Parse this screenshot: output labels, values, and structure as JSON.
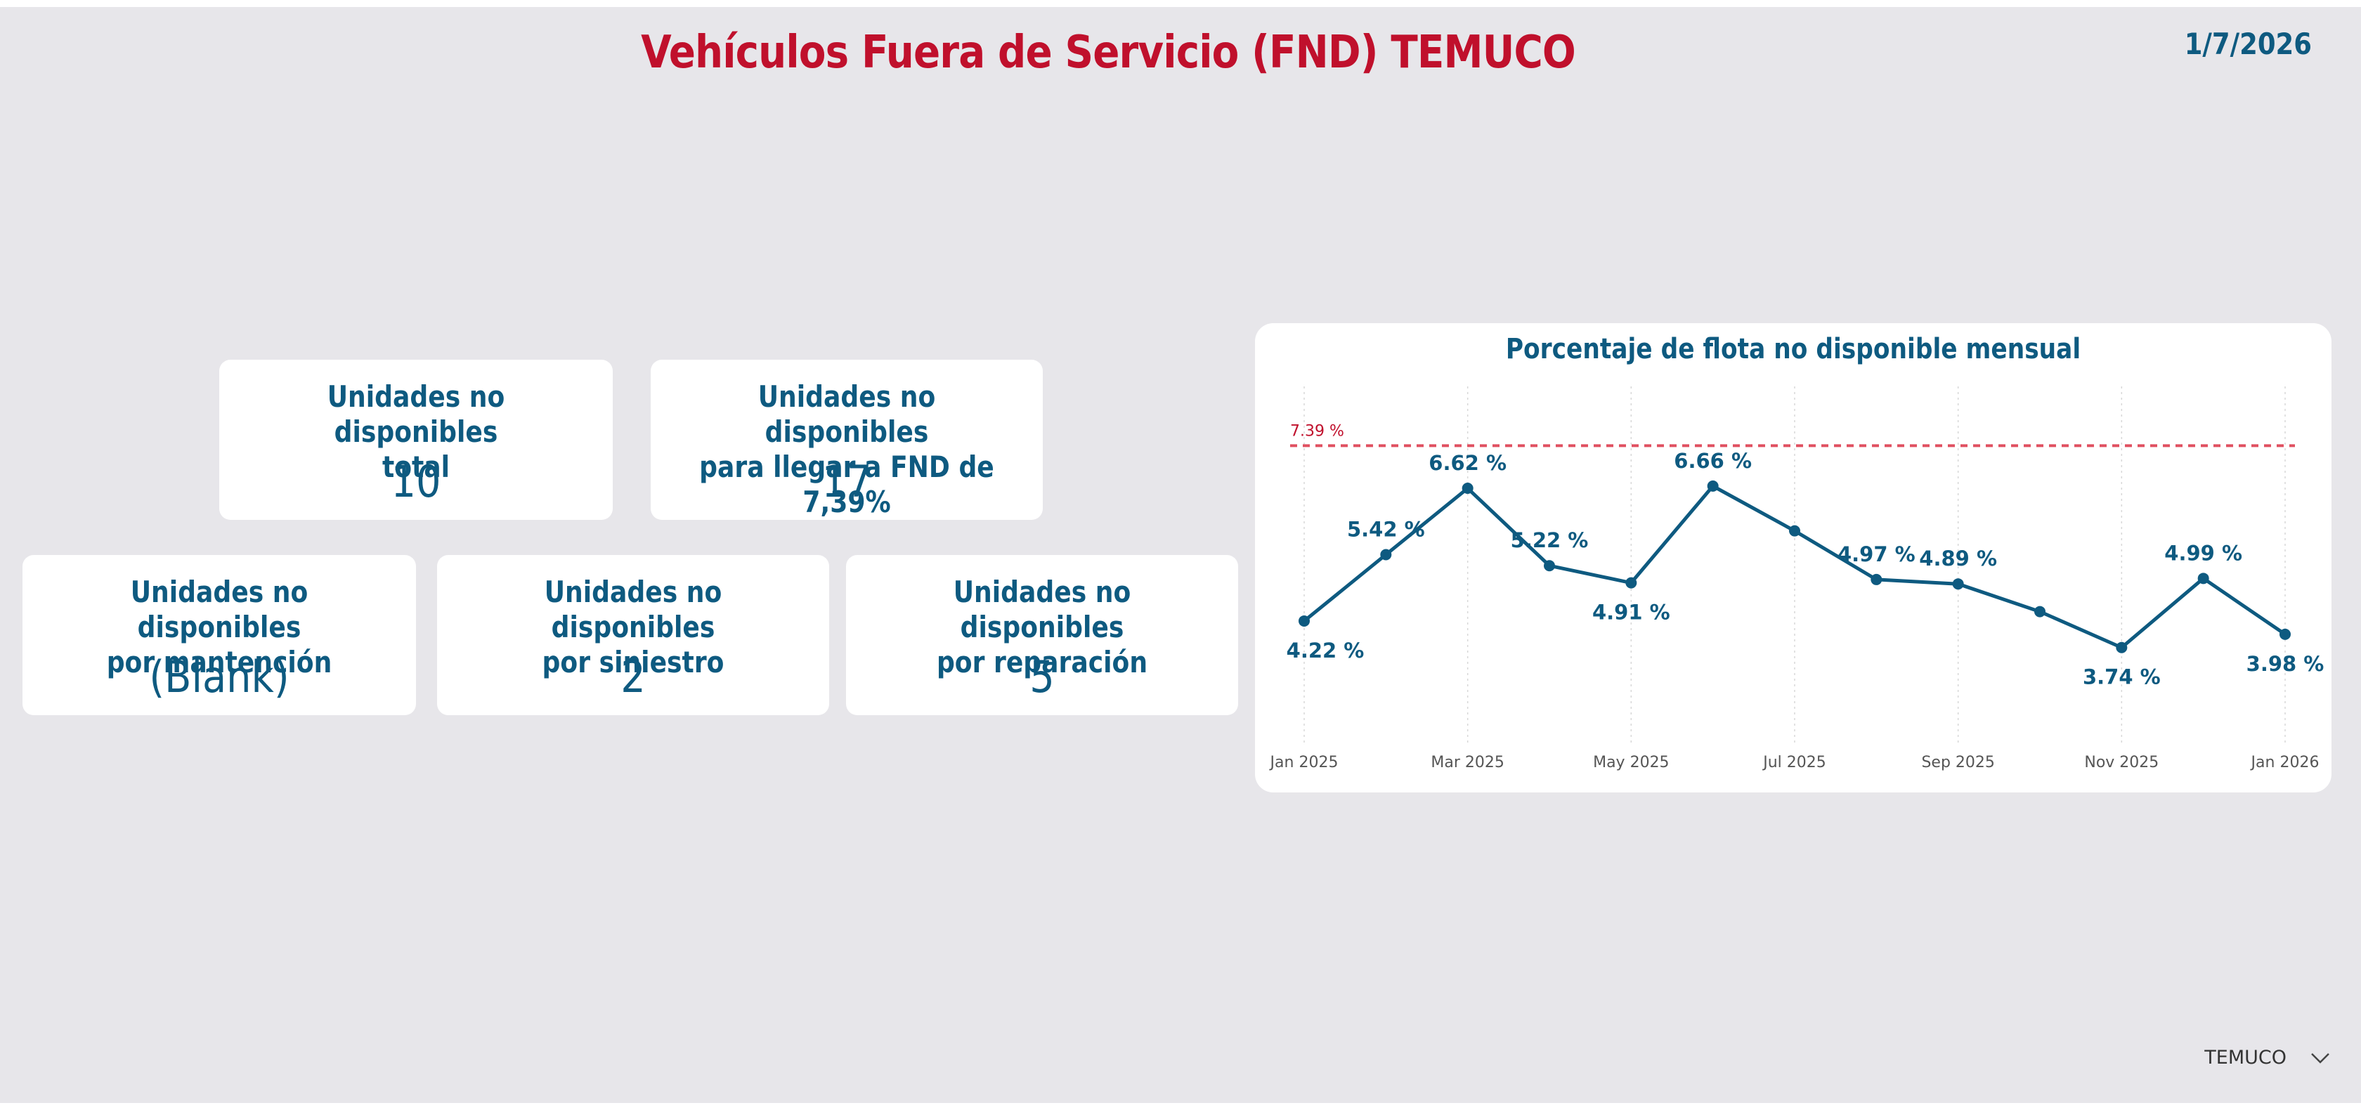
{
  "header": {
    "title": "Vehículos Fuera de Servicio (FND) TEMUCO",
    "date": "1/7/2026"
  },
  "cards": {
    "total": {
      "label_line1": "Unidades no disponibles",
      "label_line2": "total",
      "value": "10"
    },
    "to_target": {
      "label_line1": "Unidades no disponibles",
      "label_line2": "para llegar a FND de 7,39%",
      "value": "17"
    },
    "maintenance": {
      "label_line1": "Unidades no disponibles",
      "label_line2": "por mantención",
      "value": "(Blank)"
    },
    "accident": {
      "label_line1": "Unidades no disponibles",
      "label_line2": "por siniestro",
      "value": "2"
    },
    "repair": {
      "label_line1": "Unidades no disponibles",
      "label_line2": "por reparación",
      "value": "5"
    }
  },
  "chart_data": {
    "type": "line",
    "title": "Porcentaje de flota no disponible mensual",
    "x": [
      "2025-01",
      "2025-02",
      "2025-03",
      "2025-04",
      "2025-05",
      "2025-06",
      "2025-07",
      "2025-08",
      "2025-09",
      "2025-10",
      "2025-11",
      "2025-12",
      "2026-01"
    ],
    "x_tick_labels": [
      "Jan 2025",
      "Mar 2025",
      "May 2025",
      "Jul 2025",
      "Sep 2025",
      "Nov 2025",
      "Jan 2026"
    ],
    "series": [
      {
        "values": [
          4.22,
          5.42,
          6.62,
          5.22,
          4.91,
          6.66,
          5.85,
          4.97,
          4.89,
          4.39,
          3.74,
          4.99,
          3.98
        ]
      }
    ],
    "data_labels": [
      "4.22 %",
      "5.42 %",
      "6.62 %",
      "5.22 %",
      "4.91 %",
      "6.66 %",
      "",
      "4.97 %",
      "4.89 %",
      "",
      "3.74 %",
      "4.99 %",
      "3.98 %"
    ],
    "reference_line": {
      "value": 7.39,
      "label": "7.39 %",
      "color": "#e05060"
    },
    "ylim": [
      3.0,
      7.7
    ],
    "line_color": "#0e5a80",
    "grid": "vertical dotted"
  },
  "slicer": {
    "selected": "TEMUCO",
    "icon": "chevron-down-icon"
  },
  "colors": {
    "title": "#c0102c",
    "accent": "#0e5a80",
    "background": "#e7e6ea",
    "card": "#ffffff"
  }
}
